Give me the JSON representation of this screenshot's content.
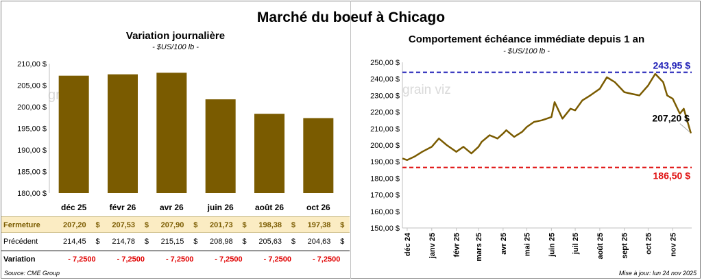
{
  "main_title": "Marché du boeuf à Chicago",
  "left": {
    "title": "Variation  journalière",
    "unit": "- $US/100 lb -",
    "watermark": "grain",
    "table": {
      "row_labels": {
        "close": "Fermeture",
        "previous": "Précédent",
        "variation": "Variation"
      },
      "currency": "$",
      "close": [
        "207,20",
        "207,53",
        "207,90",
        "201,73",
        "198,38",
        "197,38"
      ],
      "previous": [
        "214,45",
        "214,78",
        "215,15",
        "208,98",
        "205,63",
        "204,63"
      ],
      "variation": [
        "- 7,2500",
        "- 7,2500",
        "- 7,2500",
        "- 7,2500",
        "- 7,2500",
        "- 7,2500"
      ]
    },
    "source": "Source: CME Group"
  },
  "right": {
    "title": "Comportement  échéance immédiate depuis 1 an",
    "unit": "- $US/100 lb -",
    "watermark": "grain viz",
    "update": "Mise à jour: lun 24 nov 2025"
  },
  "chart_data": [
    {
      "type": "bar",
      "title": "Variation  journalière",
      "ylabel": "$US/100 lb",
      "categories": [
        "déc 25",
        "févr 26",
        "avr 26",
        "juin 26",
        "août 26",
        "oct 26"
      ],
      "values": [
        207.2,
        207.53,
        207.9,
        201.73,
        198.38,
        197.38
      ],
      "ylim": [
        180,
        210
      ],
      "yticks": [
        "180,00 $",
        "185,00 $",
        "190,00 $",
        "195,00 $",
        "200,00 $",
        "205,00 $",
        "210,00 $"
      ],
      "bar_color": "#7a5b00",
      "grid": false
    },
    {
      "type": "line",
      "title": "Comportement  échéance immédiate depuis 1 an",
      "ylabel": "$US/100 lb",
      "ylim": [
        150,
        250
      ],
      "yticks": [
        "150,00 $",
        "160,00 $",
        "170,00 $",
        "180,00 $",
        "190,00 $",
        "200,00 $",
        "210,00 $",
        "220,00 $",
        "230,00 $",
        "240,00 $",
        "250,00 $"
      ],
      "xticks": [
        "déc 24",
        "janv 25",
        "févr 25",
        "mars 25",
        "avr 25",
        "mai 25",
        "juin 25",
        "juil 25",
        "août 25",
        "sept 25",
        "oct 25",
        "nov 25"
      ],
      "series": [
        {
          "color": "#7a5b00",
          "x": [
            "2024-11-25",
            "2024-12-01",
            "2024-12-10",
            "2024-12-20",
            "2025-01-01",
            "2025-01-10",
            "2025-01-20",
            "2025-02-01",
            "2025-02-10",
            "2025-02-20",
            "2025-03-01",
            "2025-03-05",
            "2025-03-15",
            "2025-03-25",
            "2025-04-01",
            "2025-04-05",
            "2025-04-15",
            "2025-04-25",
            "2025-05-01",
            "2025-05-10",
            "2025-05-20",
            "2025-06-01",
            "2025-06-05",
            "2025-06-15",
            "2025-06-25",
            "2025-07-01",
            "2025-07-10",
            "2025-07-20",
            "2025-08-01",
            "2025-08-10",
            "2025-08-20",
            "2025-09-01",
            "2025-09-10",
            "2025-09-20",
            "2025-10-01",
            "2025-10-10",
            "2025-10-20",
            "2025-10-25",
            "2025-11-01",
            "2025-11-10",
            "2025-11-15",
            "2025-11-24"
          ],
          "y": [
            192,
            191,
            193,
            196,
            199,
            204,
            200,
            196,
            199,
            195,
            199,
            202,
            206,
            204,
            207,
            209,
            205,
            208,
            211,
            214,
            215,
            217,
            226,
            216,
            222,
            221,
            227,
            230,
            234,
            241,
            238,
            232,
            231,
            230,
            236,
            243,
            238,
            230,
            228,
            219,
            222,
            207.2
          ]
        }
      ],
      "reference_lines": [
        {
          "value": 243.95,
          "label": "243,95 $",
          "color": "#1b1bb5"
        },
        {
          "value": 186.5,
          "label": "186,50 $",
          "color": "#e01010"
        }
      ],
      "last_value_label": "207,20 $",
      "grid": false
    }
  ]
}
